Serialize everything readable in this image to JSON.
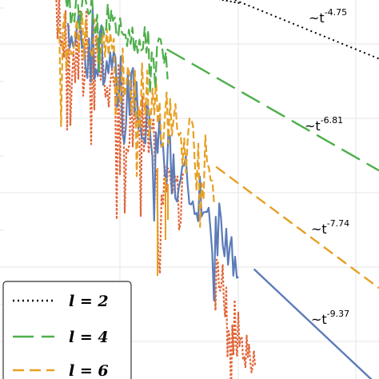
{
  "chart_data": {
    "type": "line",
    "title": "",
    "xlabel": "",
    "ylabel": "",
    "grid": true,
    "legend_position": "bottom-left",
    "colors": {
      "l2": "#000000",
      "l4": "#4daf4a",
      "l6": "#e6a023",
      "l8": "#5c7cb8",
      "noise_red": "#e0663a"
    },
    "series": [
      {
        "key": "l2",
        "name": "l = 2",
        "linestyle": "dotted",
        "tail_exponent": "-4.75",
        "tail": [
          [
            0.62,
            0.0
          ],
          [
            1.0,
            0.155
          ]
        ]
      },
      {
        "key": "l4",
        "name": "l = 4",
        "linestyle": "dashed-long",
        "tail_exponent": "-6.81",
        "tail": [
          [
            0.44,
            0.13
          ],
          [
            1.0,
            0.45
          ]
        ]
      },
      {
        "key": "l6",
        "name": "l = 6",
        "linestyle": "dashed",
        "tail_exponent": "-7.74",
        "tail": [
          [
            0.57,
            0.44
          ],
          [
            1.0,
            0.76
          ]
        ]
      },
      {
        "key": "l8",
        "name": "",
        "linestyle": "solid",
        "tail_exponent": "-9.37",
        "tail": [
          [
            0.67,
            0.71
          ],
          [
            1.0,
            1.02
          ]
        ]
      }
    ],
    "annotations": [
      {
        "series": "l2",
        "base": "~t",
        "exp": "-4.75"
      },
      {
        "series": "l4",
        "base": "~t",
        "exp": "-6.81"
      },
      {
        "series": "l6",
        "base": "~t",
        "exp": "-7.74"
      },
      {
        "series": "l8",
        "base": "~t",
        "exp": "-9.37"
      }
    ],
    "legend": [
      {
        "series": "l2",
        "label": "l = 2"
      },
      {
        "series": "l4",
        "label": "l = 4"
      },
      {
        "series": "l6",
        "label": "l = 6"
      }
    ]
  }
}
